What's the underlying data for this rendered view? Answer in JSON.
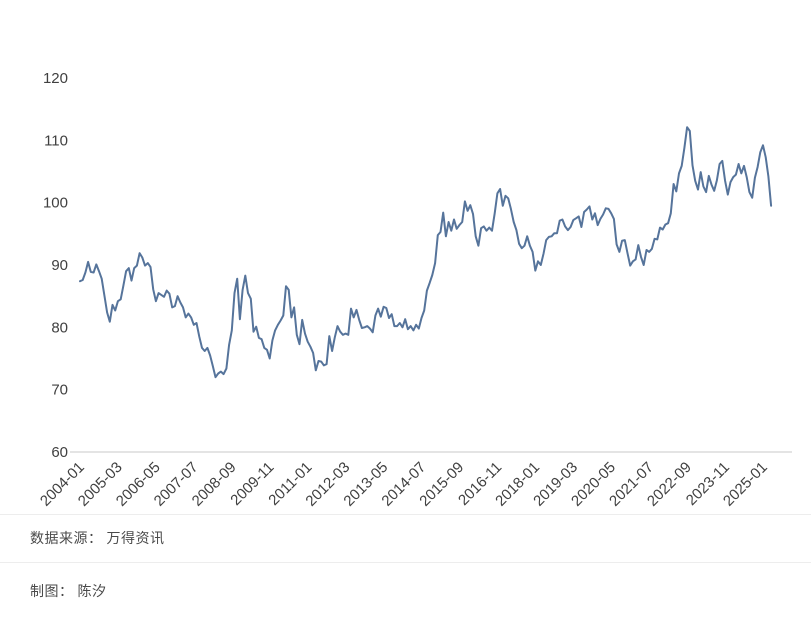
{
  "chart_data": {
    "type": "line",
    "title": "",
    "start_month": "2004-01",
    "frequency": "monthly",
    "x_tick_interval_months": 14,
    "x_tick_labels": [
      "2004-01",
      "2005-03",
      "2006-05",
      "2007-07",
      "2008-09",
      "2009-11",
      "2011-01",
      "2012-03",
      "2013-05",
      "2014-07",
      "2015-09",
      "2016-11",
      "2018-01",
      "2019-03",
      "2020-05",
      "2021-07",
      "2022-09",
      "2023-11",
      "2025-01"
    ],
    "y_ticks": [
      120,
      110,
      100,
      90,
      80,
      70,
      60
    ],
    "ylim": [
      60,
      120
    ],
    "grid": false,
    "legend": "none",
    "line_color": "#56749b",
    "axis_line_color": "#c9c9c9",
    "tick_label_color": "#404040",
    "values": [
      87.4,
      87.6,
      88.8,
      90.5,
      88.9,
      88.8,
      90.1,
      89.0,
      87.8,
      85.1,
      82.4,
      80.9,
      83.6,
      82.7,
      84.2,
      84.5,
      86.7,
      89.0,
      89.5,
      87.5,
      89.5,
      89.9,
      91.9,
      91.2,
      89.9,
      90.3,
      89.7,
      86.1,
      84.2,
      85.5,
      85.2,
      84.9,
      85.9,
      85.4,
      83.2,
      83.4,
      85.0,
      84.0,
      83.2,
      81.6,
      82.2,
      81.6,
      80.4,
      80.7,
      78.5,
      76.7,
      76.2,
      76.7,
      75.5,
      73.8,
      72.0,
      72.6,
      72.9,
      72.5,
      73.4,
      77.2,
      79.5,
      85.5,
      87.8,
      81.3,
      86.0,
      88.3,
      85.5,
      84.6,
      79.3,
      80.1,
      78.3,
      78.1,
      76.7,
      76.4,
      75.0,
      77.9,
      79.5,
      80.4,
      81.1,
      81.9,
      86.6,
      86.0,
      81.6,
      83.2,
      78.8,
      77.3,
      81.2,
      79.0,
      77.7,
      76.9,
      75.9,
      73.1,
      74.6,
      74.5,
      73.9,
      74.1,
      78.6,
      76.2,
      78.4,
      80.2,
      79.3,
      78.8,
      79.0,
      78.8,
      83.0,
      81.6,
      82.8,
      81.2,
      79.9,
      80.0,
      80.2,
      79.8,
      79.2,
      81.9,
      83.0,
      81.7,
      83.3,
      83.1,
      81.5,
      82.1,
      80.2,
      80.2,
      80.7,
      80.0,
      81.3,
      79.7,
      80.2,
      79.5,
      80.4,
      79.8,
      81.5,
      82.7,
      85.9,
      87.1,
      88.4,
      90.3,
      94.8,
      95.3,
      98.4,
      94.6,
      96.9,
      95.5,
      97.3,
      95.8,
      96.4,
      96.9,
      100.2,
      98.7,
      99.6,
      98.2,
      94.6,
      93.1,
      95.9,
      96.2,
      95.5,
      96.0,
      95.5,
      98.3,
      101.5,
      102.2,
      99.5,
      101.1,
      100.7,
      99.0,
      96.9,
      95.6,
      93.4,
      92.7,
      93.1,
      94.6,
      93.1,
      92.1,
      89.1,
      90.6,
      90.0,
      91.8,
      94.0,
      94.5,
      94.6,
      95.1,
      95.1,
      97.1,
      97.3,
      96.2,
      95.6,
      96.1,
      97.2,
      97.5,
      97.8,
      96.1,
      98.5,
      98.9,
      99.4,
      97.3,
      98.3,
      96.4,
      97.4,
      98.1,
      99.1,
      99.0,
      98.3,
      97.4,
      93.3,
      92.1,
      93.9,
      94.0,
      91.9,
      89.9,
      90.6,
      90.9,
      93.2,
      91.3,
      90.0,
      92.4,
      92.1,
      92.6,
      94.2,
      94.1,
      96.0,
      95.7,
      96.5,
      96.7,
      98.3,
      103.0,
      101.8,
      104.7,
      105.9,
      108.8,
      112.1,
      111.5,
      106.0,
      103.5,
      102.1,
      104.9,
      102.6,
      101.7,
      104.3,
      102.9,
      101.9,
      103.6,
      106.2,
      106.7,
      103.5,
      101.3,
      103.3,
      104.1,
      104.5,
      106.2,
      104.7,
      105.9,
      104.1,
      101.7,
      100.8,
      104.0,
      105.7,
      108.1,
      109.2,
      107.3,
      104.2,
      99.5
    ]
  },
  "footer": {
    "source_label": "数据来源：",
    "source_value": "万得资讯",
    "credit_label": "制图：",
    "credit_value": "陈汐"
  }
}
